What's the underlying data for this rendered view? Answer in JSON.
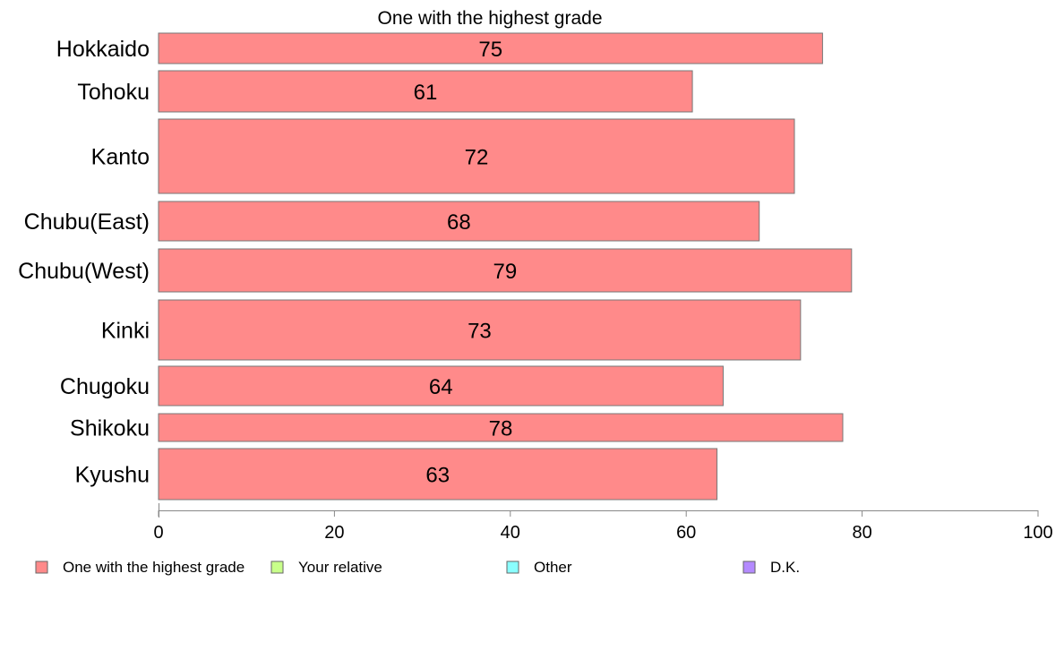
{
  "chart_data": {
    "type": "bar",
    "orientation": "horizontal",
    "title": "One with the highest grade",
    "categories": [
      "Hokkaido",
      "Tohoku",
      "Kanto",
      "Chubu(East)",
      "Chubu(West)",
      "Kinki",
      "Chugoku",
      "Shikoku",
      "Kyushu"
    ],
    "series": [
      {
        "name": "One with the highest grade",
        "values": [
          75.5,
          60.7,
          72.3,
          68.3,
          78.8,
          73.0,
          64.2,
          77.8,
          63.5
        ],
        "labels": [
          "75",
          "61",
          "72",
          "68",
          "79",
          "73",
          "64",
          "78",
          "63"
        ],
        "color": "#ff8a8a"
      },
      {
        "name": "Your relative",
        "values": [
          0,
          0,
          0,
          0,
          0,
          0,
          0,
          0,
          0
        ],
        "color": "#c8ff8a"
      },
      {
        "name": "Other",
        "values": [
          0,
          0,
          0,
          0,
          0,
          0,
          0,
          0,
          0
        ],
        "color": "#8affff"
      },
      {
        "name": "D.K.",
        "values": [
          0,
          0,
          0,
          0,
          0,
          0,
          0,
          0,
          0
        ],
        "color": "#b48aff"
      }
    ],
    "xlim": [
      0,
      100
    ],
    "xticks": [
      "0",
      "20",
      "40",
      "60",
      "80",
      "100"
    ],
    "grid": false,
    "legend_position": "bottom"
  }
}
